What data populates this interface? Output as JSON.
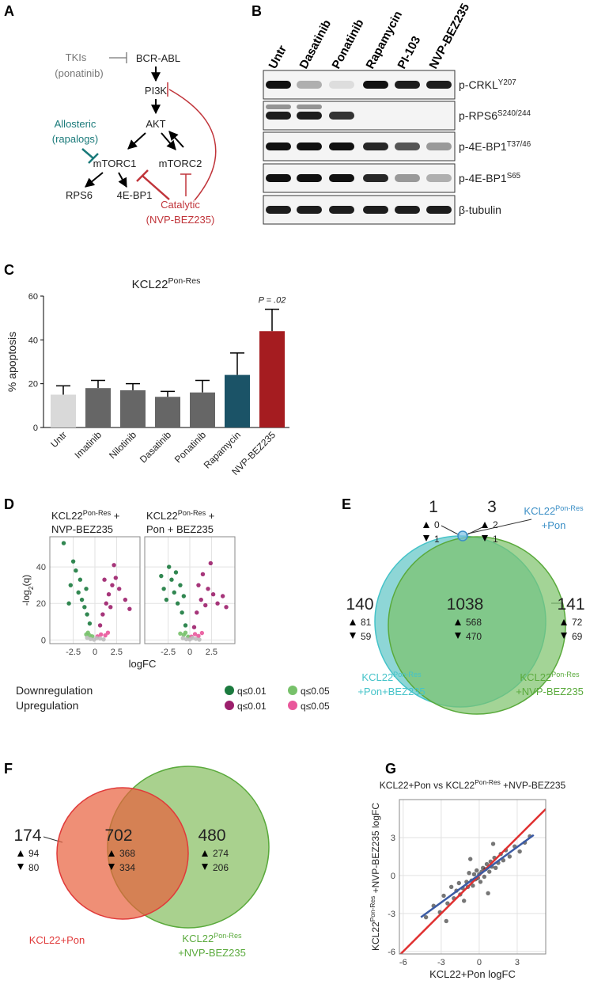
{
  "panel_labels": [
    "A",
    "B",
    "C",
    "D",
    "E",
    "F",
    "G"
  ],
  "pathway": {
    "tki": "TKIs",
    "tki_example": "(ponatinib)",
    "bcr_abl": "BCR-ABL",
    "pi3k": "PI3K",
    "akt": "AKT",
    "mtorc1": "mTORC1",
    "mtorc2": "mTORC2",
    "rps6": "RPS6",
    "eif": "4E-BP1",
    "allosteric": "Allosteric",
    "allosteric_example": "(rapalogs)",
    "catalytic": "Catalytic",
    "catalytic_example": "(NVP-BEZ235)"
  },
  "blot": {
    "lanes": [
      "Untr",
      "Dasatinib",
      "Ponatinib",
      "Rapamycin",
      "PI-103",
      "NVP-BEZ235"
    ],
    "rows": [
      [
        "p-CRKL",
        "Y207"
      ],
      [
        "p-RPS6",
        "S240/244"
      ],
      [
        "p-4E-BP1",
        "T37/46"
      ],
      [
        "p-4E-BP1",
        "S65"
      ],
      "β-tubulin"
    ]
  },
  "chart_data": [
    {
      "type": "bar",
      "title": [
        "KCL22",
        "Pon-Res"
      ],
      "ylabel": "% apoptosis",
      "categories": [
        "Untr",
        "Imatinib",
        "Nilotinib",
        "Dasatinib",
        "Ponatinib",
        "Rapamycin",
        "NVP-BEZ235"
      ],
      "values": [
        15,
        18,
        17,
        14,
        16,
        24,
        44
      ],
      "errors": [
        4,
        3.5,
        3,
        2.5,
        5.5,
        10,
        10
      ],
      "colors": [
        "#d9d9d9",
        "#666666",
        "#666666",
        "#666666",
        "#666666",
        "#1b5367",
        "#a51c20"
      ],
      "ylim": [
        0,
        60
      ],
      "yticks": [
        0,
        20,
        40,
        60
      ],
      "annotation": "P = .02"
    },
    {
      "type": "scatter",
      "xlabel": "logFC",
      "ylabel": [
        "-log",
        "2",
        "(q)"
      ],
      "xlim": [
        -5.2,
        5.2
      ],
      "xticks": [
        -2.5,
        0,
        2.5
      ],
      "ylim": [
        -2,
        56.5
      ],
      "yticks": [
        0,
        20,
        40
      ],
      "legend_groups": [
        "Downregulation",
        "Upregulation"
      ],
      "panels": [
        {
          "subtitle": [
            [
              "KCL22",
              "Pon-Res",
              " +"
            ],
            "NVP-BEZ235"
          ],
          "series": [
            {
              "name": "q≤0.01",
              "color": "#1b7a3e",
              "x": [
                -3.6,
                -3.0,
                -2.8,
                -2.5,
                -2.2,
                -1.9,
                -1.7,
                -1.5,
                -1.2,
                -1.0,
                -0.9,
                -0.6
              ],
              "values": [
                53,
                20,
                30,
                43,
                38,
                26,
                33,
                22,
                18,
                28,
                14,
                9
              ]
            },
            {
              "name": "q≤0.05",
              "color": "#77c16a",
              "x": [
                -1.0,
                -0.8,
                -0.6,
                -0.3
              ],
              "values": [
                3,
                4,
                2.5,
                2
              ]
            },
            {
              "name": "q≤0.01",
              "color": "#9c1f6c",
              "x": [
                0.6,
                0.9,
                1.1,
                1.3,
                1.6,
                1.8,
                2.0,
                2.2,
                2.4,
                2.8,
                3.5,
                4.0
              ],
              "values": [
                8,
                14,
                33,
                20,
                25,
                18,
                30,
                41,
                34,
                28,
                22,
                17
              ]
            },
            {
              "name": "q≤0.05",
              "color": "#e9579b",
              "x": [
                0.3,
                0.7,
                1.2,
                1.5
              ],
              "values": [
                2,
                3,
                2.5,
                4
              ]
            },
            {
              "color": "#bdbdbd",
              "x": [
                -0.9,
                -0.5,
                -0.1,
                0.2,
                0.6,
                1.0
              ],
              "values": [
                1.2,
                0.5,
                0.2,
                1,
                0.8,
                0.3
              ]
            }
          ]
        },
        {
          "subtitle": [
            [
              "KCL22",
              "Pon-Res",
              " +"
            ],
            "Pon + BEZ235"
          ],
          "series": [
            {
              "color": "#1b7a3e",
              "x": [
                -3.3,
                -3.0,
                -2.7,
                -2.4,
                -2.1,
                -1.8,
                -1.6,
                -1.4,
                -1.1,
                -0.9,
                -0.7,
                -0.5
              ],
              "values": [
                35,
                28,
                22,
                40,
                33,
                26,
                37,
                20,
                30,
                15,
                24,
                8
              ]
            },
            {
              "color": "#77c16a",
              "x": [
                -1.1,
                -0.7,
                -0.5,
                -0.2
              ],
              "values": [
                3.5,
                2.8,
                4,
                1.8
              ]
            },
            {
              "color": "#9c1f6c",
              "x": [
                0.5,
                0.8,
                1.0,
                1.3,
                1.5,
                1.8,
                2.1,
                2.4,
                2.7,
                3.2,
                3.8,
                4.2
              ],
              "values": [
                7,
                15,
                30,
                22,
                36,
                19,
                28,
                42,
                25,
                20,
                24,
                18
              ]
            },
            {
              "color": "#e9579b",
              "x": [
                0.2,
                0.6,
                1.0,
                1.4
              ],
              "values": [
                1.8,
                3.2,
                2.2,
                3.8
              ]
            },
            {
              "color": "#bdbdbd",
              "x": [
                -0.8,
                -0.4,
                0,
                0.3,
                0.7,
                1.1
              ],
              "values": [
                1,
                0.4,
                0.3,
                1.1,
                0.6,
                0.2
              ]
            }
          ]
        }
      ]
    },
    {
      "type": "venn",
      "sets": [
        {
          "name": [
            [
              "KCL22",
              "Pon-Res"
            ],
            "+Pon"
          ],
          "color": "#3b8fc6",
          "fill": "#7cc0e4"
        },
        {
          "name": [
            [
              "KCL22",
              "Pon-Res"
            ],
            "+Pon+BEZ235"
          ],
          "color": "#45c3c9",
          "fill": "#8ed6d6"
        },
        {
          "name": [
            [
              "KCL22",
              "Pon-Res"
            ],
            "+NVP-BEZ235"
          ],
          "color": "#5aaa3c",
          "fill": "#7cc26a"
        }
      ],
      "regions": [
        {
          "total": 1,
          "up": 0,
          "down": 1
        },
        {
          "total": 3,
          "up": 2,
          "down": 1
        },
        {
          "total": 140,
          "up": 81,
          "down": 59
        },
        {
          "total": 1038,
          "up": 568,
          "down": 470
        },
        {
          "total": 141,
          "up": 72,
          "down": 69
        }
      ]
    },
    {
      "type": "venn",
      "sets": [
        {
          "name": [
            "KCL22+Pon"
          ],
          "color": "#e03a3a",
          "fill": "#e8603c"
        },
        {
          "name": [
            [
              "KCL22",
              "Pon-Res"
            ],
            "+NVP-BEZ235"
          ],
          "color": "#5aaa3c",
          "fill": "#a9d18e"
        }
      ],
      "regions": [
        {
          "total": 174,
          "up": 94,
          "down": 80
        },
        {
          "total": 702,
          "up": 368,
          "down": 334
        },
        {
          "total": 480,
          "up": 274,
          "down": 206
        }
      ]
    },
    {
      "type": "scatter",
      "title": [
        "KCL22+Pon vs KCL22",
        "Pon-Res",
        " +NVP-BEZ235"
      ],
      "xlabel": "KCL22+Pon logFC",
      "ylabel": [
        "KCL22",
        "Pon-Res",
        " +NVP-BEZ235 logFC"
      ],
      "xlim": [
        -6.3,
        5.25
      ],
      "xticks": [
        -6,
        -3,
        0,
        3
      ],
      "ylim": [
        -6.2,
        6
      ],
      "yticks": [
        -6,
        -3,
        0,
        3
      ],
      "panels": [
        {
          "series": [
            {
              "color": "#1a1a1a",
              "x": [
                -4.2,
                -3.6,
                -3.1,
                -2.8,
                -2.5,
                -2.2,
                -2.0,
                -1.8,
                -1.6,
                -1.5,
                -1.3,
                -1.2,
                -1.0,
                -0.9,
                -0.8,
                -0.6,
                -0.5,
                -0.4,
                -0.3,
                -0.2,
                -0.1,
                0,
                0.1,
                0.2,
                0.3,
                0.4,
                0.5,
                0.6,
                0.8,
                0.9,
                1.0,
                1.2,
                1.3,
                1.5,
                1.7,
                1.9,
                2.1,
                2.4,
                2.8,
                3.2,
                3.6,
                4.0,
                -2.6,
                1.1,
                0.7,
                -0.7
              ],
              "values": [
                -3.3,
                -2.4,
                -2.9,
                -1.6,
                -2.2,
                -0.9,
                -1.8,
                -1.2,
                -0.6,
                -1.5,
                -1.0,
                -2.0,
                -0.5,
                -0.9,
                0.2,
                -0.4,
                -0.8,
                0.1,
                -0.3,
                0.4,
                -0.2,
                0.1,
                -0.5,
                0.3,
                0.6,
                -0.1,
                0.5,
                0.9,
                0.3,
                1.1,
                0.7,
                1.4,
                0.6,
                1.0,
                1.7,
                1.2,
                2.0,
                1.5,
                2.3,
                1.9,
                2.6,
                3.1,
                -3.6,
                2.5,
                -1.4,
                1.3
              ]
            }
          ],
          "lines": [
            {
              "color": "#e03030",
              "x": [
                -6.3,
                5.25
              ],
              "values": [
                -6.3,
                5.25
              ]
            },
            {
              "color": "#3b5ba5",
              "x": [
                -4.6,
                4.3
              ],
              "values": [
                -3.3,
                3.2
              ]
            }
          ]
        }
      ]
    }
  ]
}
